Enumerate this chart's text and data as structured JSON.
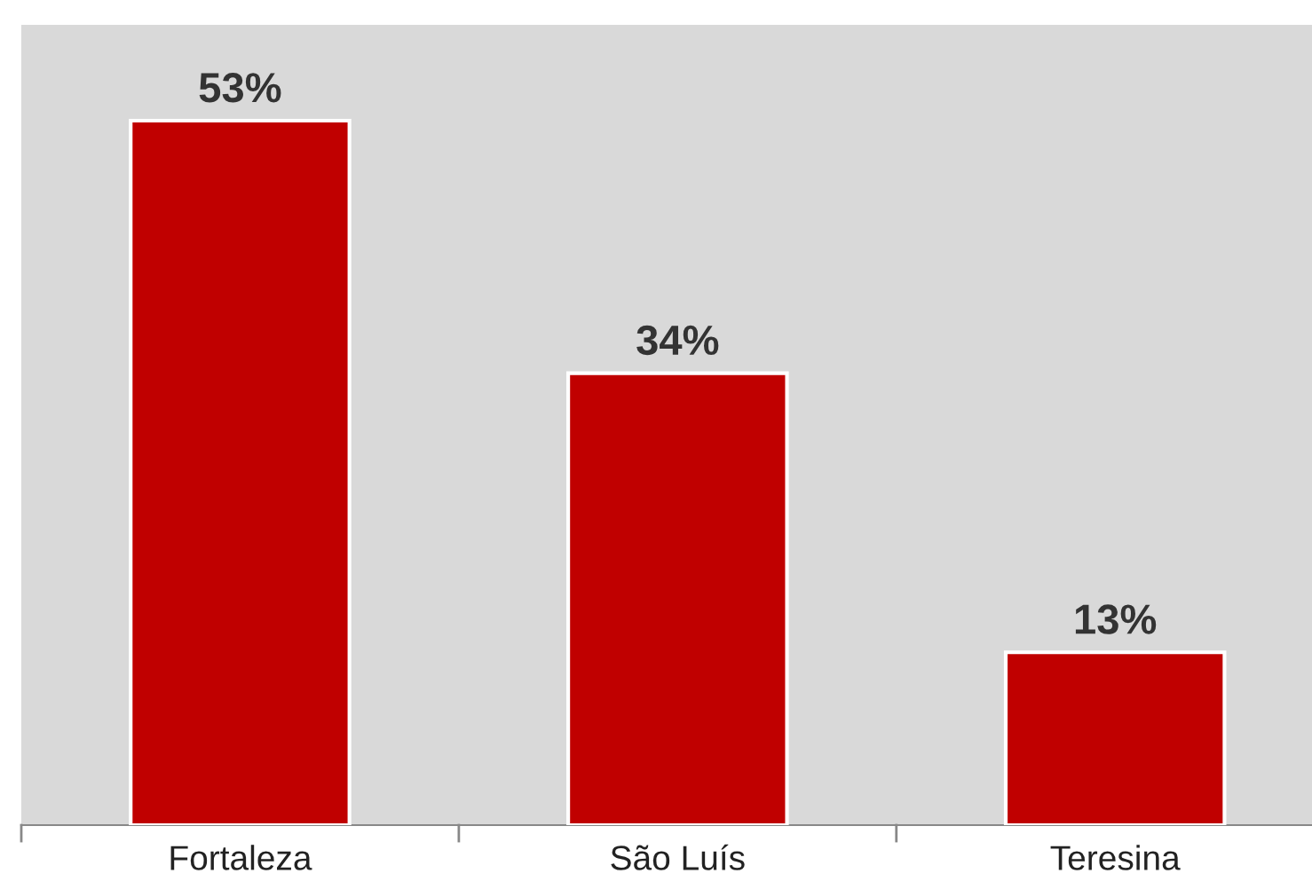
{
  "chart_data": {
    "type": "bar",
    "categories": [
      "Fortaleza",
      "São Luís",
      "Teresina"
    ],
    "values": [
      53,
      34,
      13
    ],
    "value_labels": [
      "53%",
      "34%",
      "13%"
    ],
    "color": "#c00000",
    "grid": false,
    "legend": false
  }
}
